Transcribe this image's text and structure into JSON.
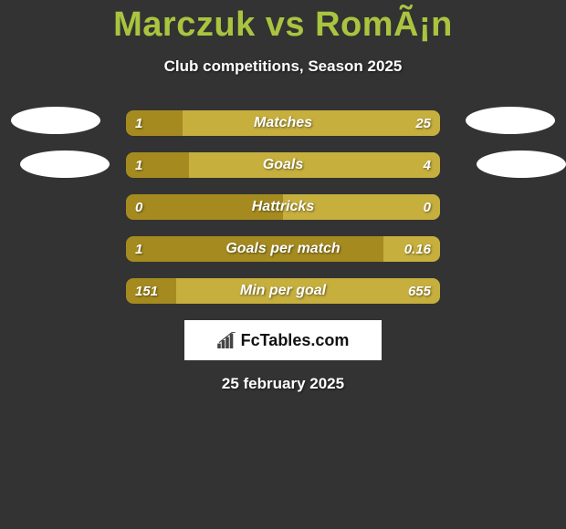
{
  "title": "Marczuk vs RomÃ¡n",
  "subtitle": "Club competitions, Season 2025",
  "date": "25 february 2025",
  "logo_text": "FcTables.com",
  "colors": {
    "left_bar": "#a58b1f",
    "right_bar": "#c6af3d",
    "accent": "#a9c43f",
    "background": "#333333",
    "white": "#ffffff",
    "logo_bar": "#444444"
  },
  "bars": [
    {
      "label": "Matches",
      "left_val": "1",
      "right_val": "25",
      "left_pct": 18,
      "right_pct": 82
    },
    {
      "label": "Goals",
      "left_val": "1",
      "right_val": "4",
      "left_pct": 20,
      "right_pct": 80
    },
    {
      "label": "Hattricks",
      "left_val": "0",
      "right_val": "0",
      "left_pct": 50,
      "right_pct": 50
    },
    {
      "label": "Goals per match",
      "left_val": "1",
      "right_val": "0.16",
      "left_pct": 82,
      "right_pct": 18
    },
    {
      "label": "Min per goal",
      "left_val": "151",
      "right_val": "655",
      "left_pct": 16,
      "right_pct": 84
    }
  ],
  "avatars": {
    "left_count": 2,
    "right_count": 2
  }
}
